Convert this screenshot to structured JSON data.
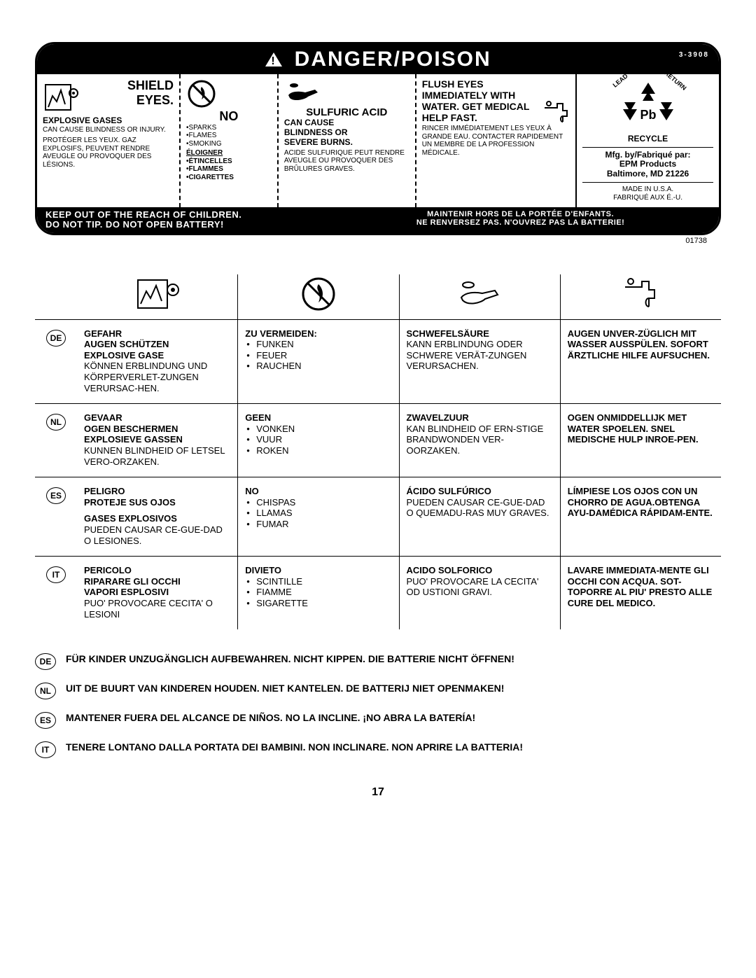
{
  "colors": {
    "bg": "#ffffff",
    "fg": "#000000"
  },
  "header": {
    "title": "DANGER/POISON",
    "part_no": "3-3908"
  },
  "label": {
    "col1": {
      "h1": "SHIELD",
      "h2": "EYES.",
      "h3": "EXPLOSIVE GASES",
      "en": "CAN CAUSE BLINDNESS OR INJURY.",
      "fr": "PROTÉGER LES YEUX. GAZ EXPLOSIFS, PEUVENT RENDRE AVEUGLE OU PROVOQUER DES LÉSIONS."
    },
    "col2": {
      "h1": "NO",
      "en": [
        "•SPARKS",
        "•FLAMES",
        "•SMOKING"
      ],
      "fr_h": "ÉLOIGNER",
      "fr": [
        "•ÉTINCELLES",
        "•FLAMMES",
        "•CIGARETTES"
      ]
    },
    "col3": {
      "h1": "SULFURIC ACID",
      "h2": "CAN CAUSE",
      "h3": "BLINDNESS OR",
      "h4": "SEVERE BURNS.",
      "fr": "ACIDE SULFURIQUE PEUT RENDRE AVEUGLE OU PROVOQUER DES BRÛLURES GRAVES."
    },
    "col4": {
      "h1": "FLUSH EYES",
      "h2": "IMMEDIATELY WITH",
      "h3": "WATER. GET MEDICAL",
      "h4": "HELP FAST.",
      "fr": "RINCER IMMÉDIATEMENT LES YEUX À GRANDE EAU. CONTACTER RAPIDEMENT UN MEMBRE DE LA PROFESSION MÉDICALE."
    },
    "col5": {
      "recycle": "RECYCLE",
      "recycle_top_l": "LEAD",
      "recycle_top_r": "RETURN",
      "mfg1": "Mfg. by/Fabriqué par:",
      "mfg2": "EPM Products",
      "mfg3": "Baltimore, MD 21226",
      "made1": "MADE IN U.S.A.",
      "made2": "FABRIQUÉ AUX É.-U."
    },
    "footer": {
      "left1": "KEEP OUT OF THE REACH OF CHILDREN.",
      "left2": "DO NOT TIP. DO NOT OPEN BATTERY!",
      "right1": "MAINTENIR HORS DE LA PORTÉE D'ENFANTS.",
      "right2": "NE RENVERSEZ PAS. N'OUVREZ PAS LA BATTERIE!"
    },
    "ref": "01738"
  },
  "langs": [
    {
      "code": "DE",
      "c1": {
        "h": "GEFAHR\nAUGEN SCHÜTZEN\nEXPLOSIVE GASE",
        "t": "KÖNNEN ERBLINDUNG UND KÖRPERVERLET-ZUNGEN VERURSAC-HEN."
      },
      "c2": {
        "h": "ZU VERMEIDEN:",
        "items": [
          "FUNKEN",
          "FEUER",
          "RAUCHEN"
        ]
      },
      "c3": {
        "h": "SCHWEFELSÄURE",
        "t": "KANN ERBLINDUNG ODER SCHWERE VERÄT-ZUNGEN VERURSACHEN."
      },
      "c4": {
        "h": "AUGEN UNVER-ZÜGLICH MIT WASSER AUSSPÜLEN. SOFORT ÄRZTLICHE HILFE AUFSUCHEN."
      }
    },
    {
      "code": "NL",
      "c1": {
        "h": "GEVAAR\nOGEN BESCHERMEN\nEXPLOSIEVE GASSEN",
        "t": "KUNNEN BLINDHEID OF LETSEL VERO-ORZAKEN."
      },
      "c2": {
        "h": "GEEN",
        "items": [
          "VONKEN",
          "VUUR",
          "ROKEN"
        ]
      },
      "c3": {
        "h": "ZWAVELZUUR",
        "t": "KAN BLINDHEID OF ERN-STIGE BRANDWONDEN VER-OORZAKEN."
      },
      "c4": {
        "h": "OGEN ONMIDDELLIJK MET WATER SPOELEN. SNEL MEDISCHE HULP INROE-PEN."
      }
    },
    {
      "code": "ES",
      "c1": {
        "h": "PELIGRO\nPROTEJE SUS OJOS",
        "h2": "GASES EXPLOSIVOS",
        "t": "PUEDEN CAUSAR CE-GUE-DAD O LESIONES."
      },
      "c2": {
        "h": "NO",
        "items": [
          "CHISPAS",
          "LLAMAS",
          "FUMAR"
        ]
      },
      "c3": {
        "h": "ÁCIDO SULFÚRICO",
        "t": "PUEDEN CAUSAR CE-GUE-DAD O QUEMADU-RAS MUY GRAVES."
      },
      "c4": {
        "h": "LÍMPIESE LOS OJOS CON UN CHORRO DE AGUA.OBTENGA AYU-DAMÉDICA RÁPIDAM-ENTE."
      }
    },
    {
      "code": "IT",
      "c1": {
        "h": "PERICOLO\nRIPARARE GLI OCCHI\nVAPORI ESPLOSIVI",
        "t": "PUO' PROVOCARE CECITA' O LESIONI"
      },
      "c2": {
        "h": "DIVIETO",
        "items": [
          "SCINTILLE",
          "FIAMME",
          "SIGARETTE"
        ]
      },
      "c3": {
        "h": "ACIDO SOLFORICO",
        "t": "PUO' PROVOCARE LA CECITA' OD USTIONI GRAVI."
      },
      "c4": {
        "h": "LAVARE IMMEDIATA-MENTE GLI OCCHI CON ACQUA. SOT-TOPORRE AL PIU' PRESTO ALLE CURE DEL MEDICO."
      }
    }
  ],
  "bottom": [
    {
      "code": "DE",
      "text": "FÜR KINDER UNZUGÄNGLICH AUFBEWAHREN. NICHT KIPPEN. DIE BATTERIE NICHT ÖFFNEN!"
    },
    {
      "code": "NL",
      "text": "UIT DE BUURT VAN KINDEREN HOUDEN. NIET KANTELEN. DE BATTERIJ NIET OPENMAKEN!"
    },
    {
      "code": "ES",
      "text": "MANTENER  FUERA DEL ALCANCE DE NIÑOS. NO LA INCLINE. ¡NO ABRA LA BATERÍA!"
    },
    {
      "code": "IT",
      "text": "TENERE LONTANO DALLA PORTATA DEI BAMBINI. NON INCLINARE. NON APRIRE LA BATTERIA!"
    }
  ],
  "page": "17"
}
